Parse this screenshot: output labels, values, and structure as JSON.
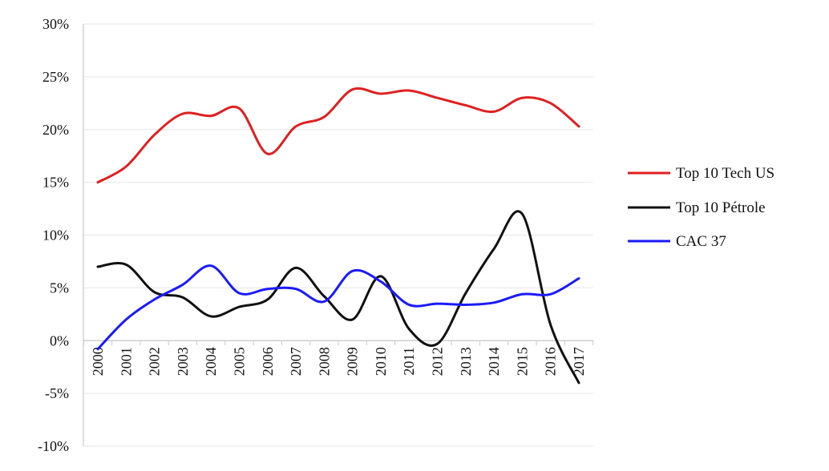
{
  "chart_data": {
    "type": "line",
    "title": "",
    "xlabel": "",
    "ylabel": "",
    "ylim": [
      -10,
      30
    ],
    "y_ticks": [
      30,
      25,
      20,
      15,
      10,
      5,
      0,
      -5,
      -10
    ],
    "y_tick_labels": [
      "30%",
      "25%",
      "20%",
      "15%",
      "10%",
      "5%",
      "0%",
      "-5%",
      "-10%"
    ],
    "categories": [
      "2000",
      "2001",
      "2002",
      "2003",
      "2004",
      "2005",
      "2006",
      "2007",
      "2008",
      "2009",
      "2010",
      "2011",
      "2012",
      "2013",
      "2014",
      "2015",
      "2016",
      "2017"
    ],
    "grid": true,
    "legend_position": "right",
    "series": [
      {
        "name": "Top 10 Tech US",
        "color": "#e02020",
        "values": [
          15.0,
          16.5,
          19.5,
          21.5,
          21.3,
          22.0,
          17.7,
          20.3,
          21.2,
          23.8,
          23.4,
          23.7,
          23.0,
          22.3,
          21.7,
          23.0,
          22.5,
          20.3
        ]
      },
      {
        "name": "Top 10 Pétrole",
        "color": "#111111",
        "values": [
          7.0,
          7.2,
          4.6,
          4.1,
          2.3,
          3.2,
          3.9,
          6.9,
          4.2,
          2.0,
          6.1,
          1.1,
          -0.3,
          4.5,
          8.7,
          12.0,
          1.5,
          -4.0
        ]
      },
      {
        "name": "CAC 37",
        "color": "#1a1aff",
        "values": [
          -0.8,
          2.0,
          3.9,
          5.3,
          7.1,
          4.5,
          4.9,
          4.9,
          3.7,
          6.6,
          5.6,
          3.4,
          3.5,
          3.4,
          3.6,
          4.4,
          4.4,
          5.9
        ]
      }
    ]
  }
}
